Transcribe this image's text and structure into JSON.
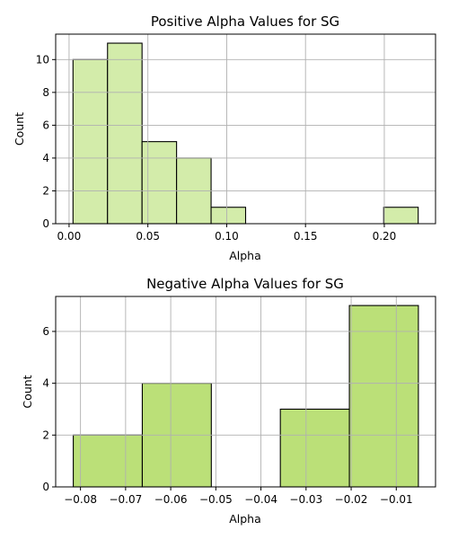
{
  "chart_data": [
    {
      "type": "bar",
      "title": "Positive Alpha Values for SG",
      "xlabel": "Alpha",
      "ylabel": "Count",
      "bar_color": "#d3ecaa",
      "bins": [
        {
          "x0": 0.0025,
          "x1": 0.0244,
          "count": 10
        },
        {
          "x0": 0.0244,
          "x1": 0.0463,
          "count": 11
        },
        {
          "x0": 0.0463,
          "x1": 0.0682,
          "count": 5
        },
        {
          "x0": 0.0682,
          "x1": 0.0901,
          "count": 4
        },
        {
          "x0": 0.0901,
          "x1": 0.112,
          "count": 1
        },
        {
          "x0": 0.1996,
          "x1": 0.2215,
          "count": 1
        }
      ],
      "xlim": [
        -0.0085,
        0.2325
      ],
      "ylim": [
        0,
        11.55
      ],
      "xticks": [
        0.0,
        0.05,
        0.1,
        0.15,
        0.2
      ],
      "xtick_labels": [
        "0.00",
        "0.05",
        "0.10",
        "0.15",
        "0.20"
      ],
      "yticks": [
        0,
        2,
        4,
        6,
        8,
        10
      ],
      "ytick_labels": [
        "0",
        "2",
        "4",
        "6",
        "8",
        "10"
      ],
      "grid": true
    },
    {
      "type": "bar",
      "title": "Negative Alpha Values for SG",
      "xlabel": "Alpha",
      "ylabel": "Count",
      "bar_color": "#bbe078",
      "bins": [
        {
          "x0": -0.0816,
          "x1": -0.0663,
          "count": 2
        },
        {
          "x0": -0.0663,
          "x1": -0.051,
          "count": 4
        },
        {
          "x0": -0.051,
          "x1": -0.0357,
          "count": 0
        },
        {
          "x0": -0.0357,
          "x1": -0.0204,
          "count": 3
        },
        {
          "x0": -0.0204,
          "x1": -0.0051,
          "count": 7
        }
      ],
      "xlim": [
        -0.0855,
        -0.0013
      ],
      "ylim": [
        0,
        7.35
      ],
      "xticks": [
        -0.08,
        -0.07,
        -0.06,
        -0.05,
        -0.04,
        -0.03,
        -0.02,
        -0.01
      ],
      "xtick_labels": [
        "−0.08",
        "−0.07",
        "−0.06",
        "−0.05",
        "−0.04",
        "−0.03",
        "−0.02",
        "−0.01"
      ],
      "yticks": [
        0,
        2,
        4,
        6
      ],
      "ytick_labels": [
        "0",
        "2",
        "4",
        "6"
      ],
      "grid": true
    }
  ]
}
